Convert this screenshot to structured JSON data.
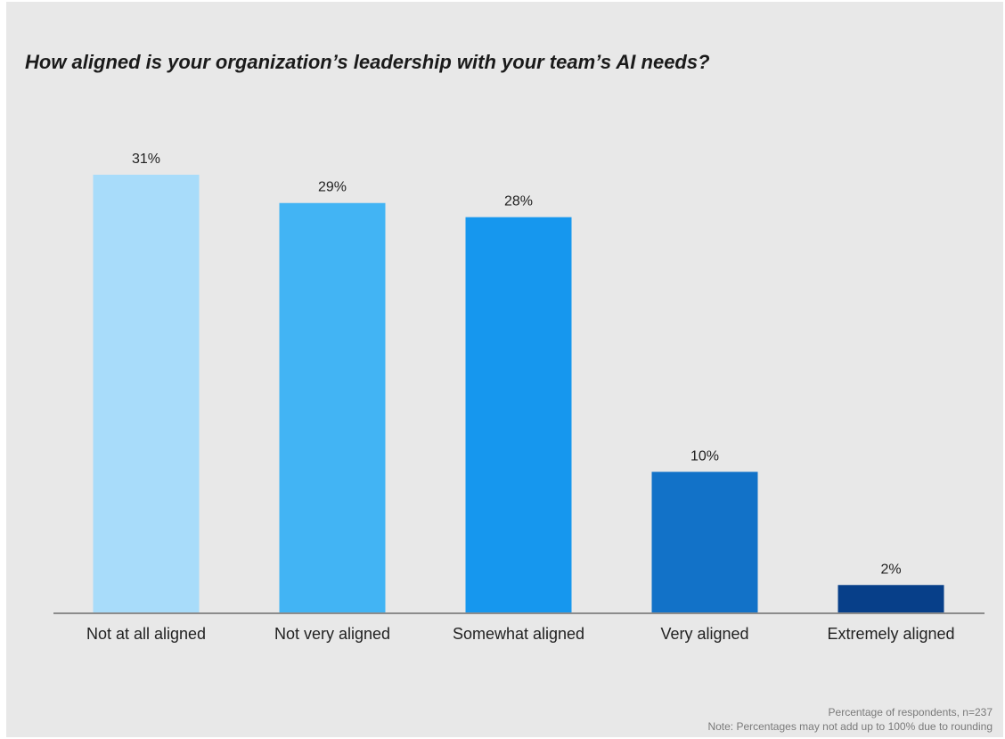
{
  "chart_data": {
    "type": "bar",
    "title": "How aligned is your organization’s leadership with your team’s AI needs?",
    "categories": [
      "Not at all aligned",
      "Not very aligned",
      "Somewhat aligned",
      "Very aligned",
      "Extremely aligned"
    ],
    "values": [
      31,
      29,
      28,
      10,
      2
    ],
    "value_labels": [
      "31%",
      "29%",
      "28%",
      "10%",
      "2%"
    ],
    "colors": [
      "#a8dcfa",
      "#42b4f4",
      "#1697ee",
      "#1272c8",
      "#073f89"
    ],
    "xlabel": "",
    "ylabel": "",
    "ylim": [
      0,
      31
    ],
    "grid": false,
    "legend": "none"
  },
  "footnotes": {
    "sample": "Percentage of respondents, n=237",
    "note": "Note: Percentages may not add up to 100% due to rounding"
  }
}
